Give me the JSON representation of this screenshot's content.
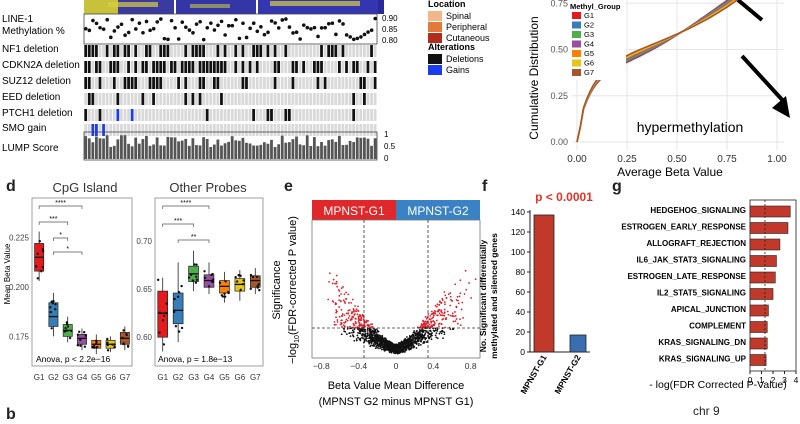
{
  "top_left": {
    "rows": [
      "LINE-1 Methylation %",
      "NF1 deletion",
      "CDKN2A deletion",
      "SUZ12 deletion",
      "EED deletion",
      "PTCH1 deletion",
      "SMO gain",
      "LUMP Score"
    ],
    "methyl_ticks": [
      "0.90",
      "0.85",
      "0.80"
    ],
    "lump_ticks": [
      "1",
      "0.5",
      "0"
    ],
    "legend_location_title": "Location",
    "legend_location": [
      "Spinal",
      "Peripheral",
      "Cutaneous"
    ],
    "legend_location_colors": [
      "#f4b78a",
      "#e07b3a",
      "#b32d1e"
    ],
    "legend_alt_title": "Alterations",
    "legend_alt": [
      "Deletions",
      "Gains"
    ],
    "legend_alt_colors": [
      "#111111",
      "#1a3df0"
    ]
  },
  "cdf": {
    "ylabel": "Cumulative Distribution",
    "xlabel": "Average Beta Value",
    "legend_title": "Methyl_Group",
    "groups": [
      "G1",
      "G2",
      "G3",
      "G4",
      "G5",
      "G6",
      "G7"
    ],
    "group_colors": [
      "#e41a1c",
      "#377eb8",
      "#4daf4a",
      "#984ea3",
      "#ff7f00",
      "#e6c619",
      "#a65628"
    ],
    "yticks": [
      "0.75",
      "0.50",
      "0.25",
      "0.00"
    ],
    "xticks": [
      "0.00",
      "0.25",
      "0.50",
      "0.75",
      "1.00"
    ],
    "annotation": "hypermethylation"
  },
  "panel_d": {
    "letter": "d",
    "ylabel": "Mean Beta Value",
    "left_title": "CpG Island",
    "right_title": "Other Probes",
    "left_yticks": [
      "0.225",
      "0.200",
      "0.175"
    ],
    "right_yticks": [
      "0.70",
      "0.65",
      "0.60"
    ],
    "xticks": [
      "G1",
      "G2",
      "G3",
      "G4",
      "G5",
      "G6",
      "G7"
    ],
    "left_stat": "Anova, p < 2.2e−16",
    "right_stat": "Anova, p = 1.8e−13",
    "sig_left": [
      "****",
      "***",
      "*",
      "*"
    ],
    "sig_right": [
      "****",
      "***",
      "**"
    ]
  },
  "panel_e": {
    "letter": "e",
    "label_g1": "MPNST-G1",
    "label_g2": "MPNST-G2",
    "ylabel_1": "Significance",
    "ylabel_2": "−log",
    "ylabel_2_sub": "10",
    "ylabel_2_rest": "(FDR-corrected P value)",
    "xlabel_1": "Beta Value Mean Difference",
    "xlabel_2": "(MPNST G2 minus MPNST G1)",
    "xticks": [
      "−0.8",
      "−0.4",
      "0",
      "0.4",
      "0.8"
    ]
  },
  "chart_data": [
    {
      "type": "bar",
      "title": "p < 0.0001",
      "ylabel": "No. Significant differentially methylated and silenced genes",
      "categories": [
        "MPNST-G1",
        "MPNST-G2"
      ],
      "values": [
        137,
        17
      ],
      "colors": [
        "#c0392b",
        "#3b6eb0"
      ],
      "ylim": [
        0,
        140
      ],
      "yticks": [
        "0",
        "20",
        "40",
        "60",
        "80",
        "100",
        "120",
        "140"
      ]
    },
    {
      "type": "bar",
      "orientation": "horizontal",
      "xlabel": "- log(FDR Corrected P-Value)",
      "categories": [
        "HEDGEHOG_SIGNALING",
        "ESTROGEN_EARLY_RESPONSE",
        "ALLOGRAFT_REJECTION",
        "IL6_JAK_STAT3_SIGNALING",
        "ESTROGEN_LATE_RESPONSE",
        "IL2_STAT5_SIGNALING",
        "APICAL_JUNCTION",
        "COMPLEMENT",
        "KRAS_SIGNALING_DN",
        "KRAS_SIGNALING_UP"
      ],
      "values": [
        3.5,
        3.3,
        2.6,
        2.3,
        2.2,
        2.0,
        1.6,
        1.5,
        1.5,
        1.4
      ],
      "xlim": [
        0,
        4
      ],
      "xticks": [
        "0",
        "1",
        "2",
        "3",
        "4"
      ],
      "threshold": 1.3
    }
  ],
  "panel_f": {
    "letter": "f"
  },
  "panel_g": {
    "letter": "g"
  },
  "bottom": {
    "letter_b": "b",
    "chr_label": "chr 9"
  }
}
